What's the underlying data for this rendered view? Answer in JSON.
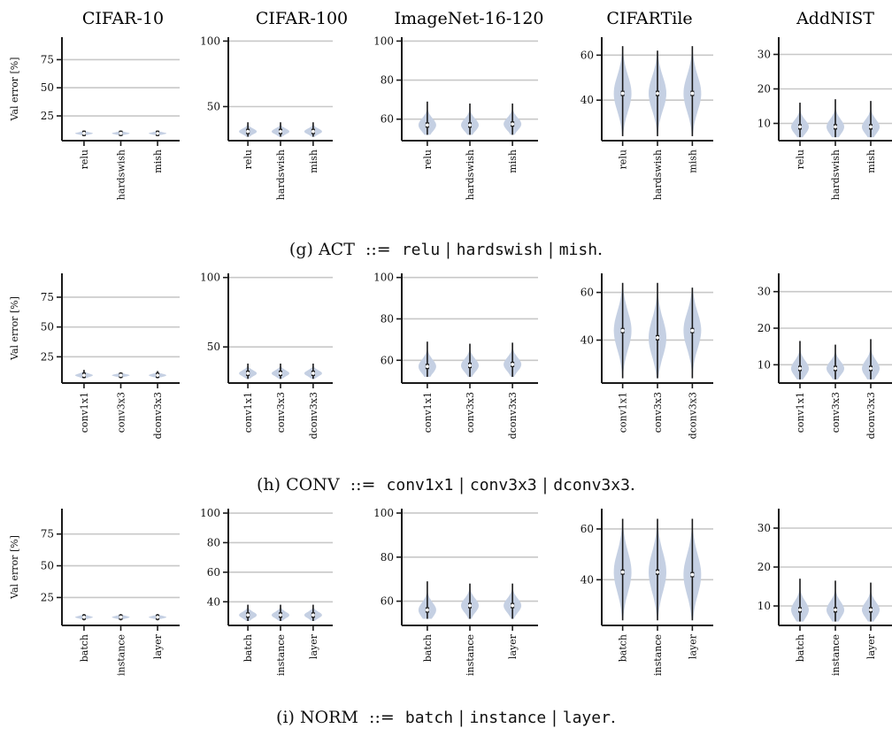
{
  "column_titles": [
    "CIFAR-10",
    "CIFAR-100",
    "ImageNet-16-120",
    "CIFARTile",
    "AddNIST"
  ],
  "ylabel": "Val error [%]",
  "captions": [
    {
      "label": "(g)",
      "name": "ACT",
      "sep": "::=",
      "options": [
        "relu",
        "hardswish",
        "mish"
      ]
    },
    {
      "label": "(h)",
      "name": "CONV",
      "sep": "::=",
      "options": [
        "conv1x1",
        "conv3x3",
        "dconv3x3"
      ]
    },
    {
      "label": "(i)",
      "name": "NORM",
      "sep": "::=",
      "options": [
        "batch",
        "instance",
        "layer"
      ]
    }
  ],
  "colors": {
    "violin": "#c5d0e3",
    "median": "#ffffff",
    "grid": "#c8c8c8",
    "axis": "#1a1a1a"
  },
  "chart_data": [
    {
      "type": "violin",
      "row": "(g)",
      "dataset": "CIFAR-10",
      "categories": [
        "relu",
        "hardswish",
        "mish"
      ],
      "ylim": [
        3,
        95
      ],
      "yticks": [
        25,
        50,
        75
      ],
      "ylabel": "Val error [%]",
      "series": [
        {
          "name": "relu",
          "median": 9.5,
          "min": 7,
          "max": 12
        },
        {
          "name": "hardswish",
          "median": 9.5,
          "min": 7,
          "max": 12
        },
        {
          "name": "mish",
          "median": 9.5,
          "min": 7,
          "max": 12
        }
      ]
    },
    {
      "type": "violin",
      "row": "(g)",
      "dataset": "CIFAR-100",
      "categories": [
        "relu",
        "hardswish",
        "mish"
      ],
      "ylim": [
        24,
        103
      ],
      "yticks": [
        50,
        100
      ],
      "series": [
        {
          "name": "relu",
          "median": 31,
          "min": 27,
          "max": 38
        },
        {
          "name": "hardswish",
          "median": 31,
          "min": 27,
          "max": 38
        },
        {
          "name": "mish",
          "median": 31,
          "min": 27,
          "max": 38
        }
      ]
    },
    {
      "type": "violin",
      "row": "(g)",
      "dataset": "ImageNet-16-120",
      "categories": [
        "relu",
        "hardswish",
        "mish"
      ],
      "ylim": [
        49,
        102
      ],
      "yticks": [
        60,
        80,
        100
      ],
      "series": [
        {
          "name": "relu",
          "median": 57,
          "min": 52,
          "max": 69
        },
        {
          "name": "hardswish",
          "median": 57,
          "min": 52,
          "max": 68
        },
        {
          "name": "mish",
          "median": 57.5,
          "min": 52,
          "max": 68
        }
      ]
    },
    {
      "type": "violin",
      "row": "(g)",
      "dataset": "CIFARTile",
      "categories": [
        "relu",
        "hardswish",
        "mish"
      ],
      "ylim": [
        22,
        68
      ],
      "yticks": [
        40,
        60
      ],
      "series": [
        {
          "name": "relu",
          "median": 43,
          "min": 24,
          "max": 64
        },
        {
          "name": "hardswish",
          "median": 43,
          "min": 24,
          "max": 62
        },
        {
          "name": "mish",
          "median": 43,
          "min": 24,
          "max": 64
        }
      ]
    },
    {
      "type": "violin",
      "row": "(g)",
      "dataset": "AddNIST",
      "categories": [
        "relu",
        "hardswish",
        "mish"
      ],
      "ylim": [
        5,
        35
      ],
      "yticks": [
        10,
        20,
        30
      ],
      "series": [
        {
          "name": "relu",
          "median": 9,
          "min": 6,
          "max": 16
        },
        {
          "name": "hardswish",
          "median": 9,
          "min": 6,
          "max": 17
        },
        {
          "name": "mish",
          "median": 9,
          "min": 6,
          "max": 16.5
        }
      ]
    },
    {
      "type": "violin",
      "row": "(h)",
      "dataset": "CIFAR-10",
      "categories": [
        "conv1x1",
        "conv3x3",
        "dconv3x3"
      ],
      "ylim": [
        3,
        95
      ],
      "yticks": [
        25,
        50,
        75
      ],
      "ylabel": "Val error [%]",
      "series": [
        {
          "name": "conv1x1",
          "median": 9.5,
          "min": 7,
          "max": 14
        },
        {
          "name": "conv3x3",
          "median": 9.5,
          "min": 7,
          "max": 12
        },
        {
          "name": "dconv3x3",
          "median": 9.5,
          "min": 7,
          "max": 13
        }
      ]
    },
    {
      "type": "violin",
      "row": "(h)",
      "dataset": "CIFAR-100",
      "categories": [
        "conv1x1",
        "conv3x3",
        "dconv3x3"
      ],
      "ylim": [
        24,
        103
      ],
      "yticks": [
        50,
        100
      ],
      "series": [
        {
          "name": "conv1x1",
          "median": 31,
          "min": 27,
          "max": 38
        },
        {
          "name": "conv3x3",
          "median": 31,
          "min": 27,
          "max": 38
        },
        {
          "name": "dconv3x3",
          "median": 31,
          "min": 27,
          "max": 38
        }
      ]
    },
    {
      "type": "violin",
      "row": "(h)",
      "dataset": "ImageNet-16-120",
      "categories": [
        "conv1x1",
        "conv3x3",
        "dconv3x3"
      ],
      "ylim": [
        49,
        102
      ],
      "yticks": [
        60,
        80,
        100
      ],
      "series": [
        {
          "name": "conv1x1",
          "median": 57,
          "min": 52,
          "max": 69
        },
        {
          "name": "conv3x3",
          "median": 57.5,
          "min": 52,
          "max": 68
        },
        {
          "name": "dconv3x3",
          "median": 58,
          "min": 52,
          "max": 68.5
        }
      ]
    },
    {
      "type": "violin",
      "row": "(h)",
      "dataset": "CIFARTile",
      "categories": [
        "conv1x1",
        "conv3x3",
        "dconv3x3"
      ],
      "ylim": [
        22,
        68
      ],
      "yticks": [
        40,
        60
      ],
      "series": [
        {
          "name": "conv1x1",
          "median": 44,
          "min": 24,
          "max": 64
        },
        {
          "name": "conv3x3",
          "median": 41,
          "min": 24,
          "max": 64
        },
        {
          "name": "dconv3x3",
          "median": 44,
          "min": 24,
          "max": 62
        }
      ]
    },
    {
      "type": "violin",
      "row": "(h)",
      "dataset": "AddNIST",
      "categories": [
        "conv1x1",
        "conv3x3",
        "dconv3x3"
      ],
      "ylim": [
        5,
        35
      ],
      "yticks": [
        10,
        20,
        30
      ],
      "series": [
        {
          "name": "conv1x1",
          "median": 9,
          "min": 6,
          "max": 16.5
        },
        {
          "name": "conv3x3",
          "median": 9,
          "min": 6,
          "max": 15.5
        },
        {
          "name": "dconv3x3",
          "median": 9,
          "min": 6,
          "max": 17
        }
      ]
    },
    {
      "type": "violin",
      "row": "(i)",
      "dataset": "CIFAR-10",
      "categories": [
        "batch",
        "instance",
        "layer"
      ],
      "ylim": [
        3,
        95
      ],
      "yticks": [
        25,
        50,
        75
      ],
      "ylabel": "Val error [%]",
      "series": [
        {
          "name": "batch",
          "median": 9.5,
          "min": 7,
          "max": 12
        },
        {
          "name": "instance",
          "median": 9.5,
          "min": 7,
          "max": 12
        },
        {
          "name": "layer",
          "median": 9.5,
          "min": 7,
          "max": 12
        }
      ]
    },
    {
      "type": "violin",
      "row": "(i)",
      "dataset": "CIFAR-100",
      "categories": [
        "batch",
        "instance",
        "layer"
      ],
      "ylim": [
        24,
        103
      ],
      "yticks": [
        40,
        60,
        80,
        100
      ],
      "series": [
        {
          "name": "batch",
          "median": 31,
          "min": 27,
          "max": 38
        },
        {
          "name": "instance",
          "median": 31,
          "min": 27,
          "max": 38
        },
        {
          "name": "layer",
          "median": 31,
          "min": 27,
          "max": 38
        }
      ]
    },
    {
      "type": "violin",
      "row": "(i)",
      "dataset": "ImageNet-16-120",
      "categories": [
        "batch",
        "instance",
        "layer"
      ],
      "ylim": [
        49,
        102
      ],
      "yticks": [
        60,
        80,
        100
      ],
      "series": [
        {
          "name": "batch",
          "median": 56,
          "min": 52,
          "max": 69
        },
        {
          "name": "instance",
          "median": 58,
          "min": 52,
          "max": 68
        },
        {
          "name": "layer",
          "median": 58,
          "min": 52,
          "max": 68
        }
      ]
    },
    {
      "type": "violin",
      "row": "(i)",
      "dataset": "CIFARTile",
      "categories": [
        "batch",
        "instance",
        "layer"
      ],
      "ylim": [
        22,
        68
      ],
      "yticks": [
        40,
        60
      ],
      "series": [
        {
          "name": "batch",
          "median": 43,
          "min": 24,
          "max": 64
        },
        {
          "name": "instance",
          "median": 43,
          "min": 24,
          "max": 64
        },
        {
          "name": "layer",
          "median": 42,
          "min": 24,
          "max": 64
        }
      ]
    },
    {
      "type": "violin",
      "row": "(i)",
      "dataset": "AddNIST",
      "categories": [
        "batch",
        "instance",
        "layer"
      ],
      "ylim": [
        5,
        35
      ],
      "yticks": [
        10,
        20,
        30
      ],
      "series": [
        {
          "name": "batch",
          "median": 9,
          "min": 6,
          "max": 17
        },
        {
          "name": "instance",
          "median": 9,
          "min": 6,
          "max": 16.5
        },
        {
          "name": "layer",
          "median": 9,
          "min": 6,
          "max": 16
        }
      ]
    }
  ]
}
